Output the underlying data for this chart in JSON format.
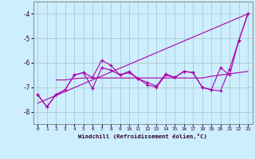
{
  "xlabel": "Windchill (Refroidissement éolien,°C)",
  "bg_color": "#cceeff",
  "grid_color": "#aacccc",
  "line_color": "#aa00aa",
  "xlim": [
    -0.5,
    23.5
  ],
  "ylim": [
    -8.5,
    -3.5
  ],
  "xticks": [
    0,
    1,
    2,
    3,
    4,
    5,
    6,
    7,
    8,
    9,
    10,
    11,
    12,
    13,
    14,
    15,
    16,
    17,
    18,
    19,
    20,
    21,
    22,
    23
  ],
  "yticks": [
    -8,
    -7,
    -6,
    -5,
    -4
  ],
  "series1_x": [
    0,
    1,
    2,
    3,
    4,
    5,
    6,
    7,
    8,
    9,
    10,
    11,
    12,
    13,
    14,
    15,
    16,
    17,
    18,
    19,
    20,
    21,
    22,
    23
  ],
  "series1_y": [
    -7.3,
    -7.8,
    -7.3,
    -7.1,
    -6.5,
    -6.4,
    -6.6,
    -5.9,
    -6.1,
    -6.5,
    -6.4,
    -6.65,
    -6.8,
    -6.95,
    -6.45,
    -6.6,
    -6.35,
    -6.4,
    -7.0,
    -7.1,
    -7.15,
    -6.25,
    -5.1,
    -4.0
  ],
  "series2_x": [
    2,
    3,
    4,
    5,
    6,
    7,
    8,
    9,
    10,
    11,
    12,
    13,
    14,
    15,
    16,
    17,
    18,
    19,
    20,
    21,
    22,
    23
  ],
  "series2_y": [
    -6.7,
    -6.7,
    -6.65,
    -6.62,
    -6.62,
    -6.62,
    -6.62,
    -6.62,
    -6.62,
    -6.62,
    -6.62,
    -6.62,
    -6.62,
    -6.62,
    -6.62,
    -6.62,
    -6.62,
    -6.55,
    -6.5,
    -6.45,
    -6.4,
    -6.35
  ],
  "series3_x": [
    0,
    23
  ],
  "series3_y": [
    -7.65,
    -4.0
  ],
  "series4_x": [
    0,
    1,
    2,
    3,
    4,
    5,
    6,
    7,
    8,
    9,
    10,
    11,
    12,
    13,
    14,
    15,
    16,
    17,
    18,
    19,
    20,
    21,
    22,
    23
  ],
  "series4_y": [
    -7.3,
    -7.8,
    -7.3,
    -7.1,
    -6.5,
    -6.4,
    -7.05,
    -6.2,
    -6.3,
    -6.5,
    -6.35,
    -6.65,
    -6.9,
    -7.0,
    -6.5,
    -6.6,
    -6.35,
    -6.4,
    -7.0,
    -7.1,
    -6.2,
    -6.5,
    -5.1,
    -4.0
  ]
}
